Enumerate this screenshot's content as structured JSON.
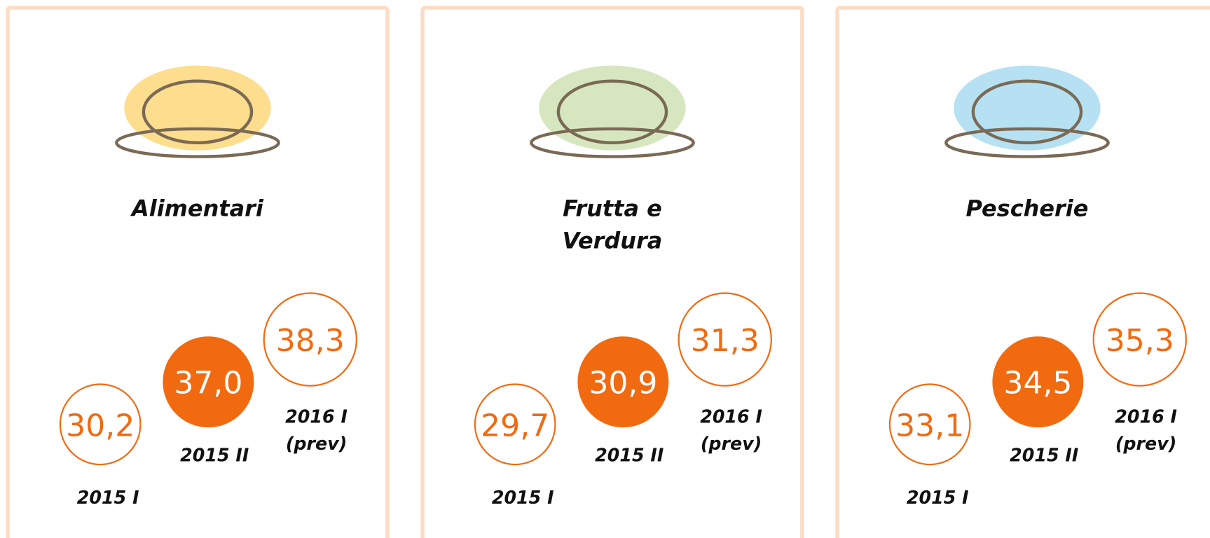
{
  "cards": [
    {
      "title": [
        "Alimentari"
      ],
      "items": [
        {
          "value": "30,2",
          "label": [
            "2015 I"
          ]
        },
        {
          "value": "37,0",
          "label": [
            "2015 II"
          ]
        },
        {
          "value": "38,3",
          "label": [
            "2016 I",
            "(prev)"
          ]
        }
      ]
    },
    {
      "title": [
        "Frutta e",
        "Verdura"
      ],
      "items": [
        {
          "value": "29,7",
          "label": [
            "2015 I"
          ]
        },
        {
          "value": "30,9",
          "label": [
            "2015 II"
          ]
        },
        {
          "value": "31,3",
          "label": [
            "2016 I",
            "(prev)"
          ]
        }
      ]
    },
    {
      "title": [
        "Pescherie"
      ],
      "items": [
        {
          "value": "33,1",
          "label": [
            "2015 I"
          ]
        },
        {
          "value": "34,5",
          "label": [
            "2015 II"
          ]
        },
        {
          "value": "35,3",
          "label": [
            "2016 I",
            "(prev)"
          ]
        }
      ]
    }
  ]
}
